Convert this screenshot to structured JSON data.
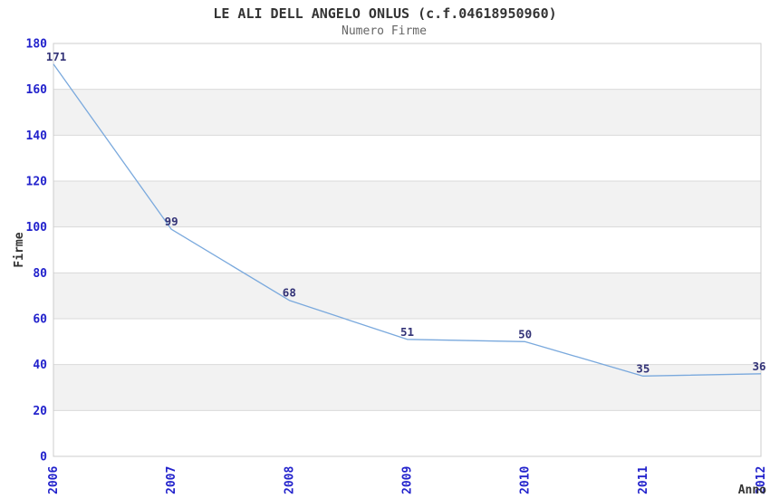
{
  "chart_data": {
    "type": "line",
    "title": "LE ALI DELL ANGELO ONLUS (c.f.04618950960)",
    "subtitle": "Numero Firme",
    "xlabel": "Anno",
    "ylabel": "Firme",
    "categories": [
      "2006",
      "2007",
      "2008",
      "2009",
      "2010",
      "2011",
      "2012"
    ],
    "values": [
      171,
      99,
      68,
      51,
      50,
      35,
      36
    ],
    "ylim": [
      0,
      180
    ],
    "ytick_step": 20,
    "yticks": [
      0,
      20,
      40,
      60,
      80,
      100,
      120,
      140,
      160,
      180
    ],
    "grid": true,
    "legend": "none",
    "band_pattern": "alternating-horizontal",
    "x_tick_rotation": -90,
    "colors": {
      "line": "#7aa9dd",
      "data_label": "#333377",
      "tick_label": "#2222cc",
      "band": "#f2f2f2",
      "grid_line": "#d9d9d9",
      "axis_line": "#cccccc",
      "title": "#333333",
      "subtitle": "#666666",
      "axis_title": "#333333",
      "background": "#ffffff"
    }
  }
}
